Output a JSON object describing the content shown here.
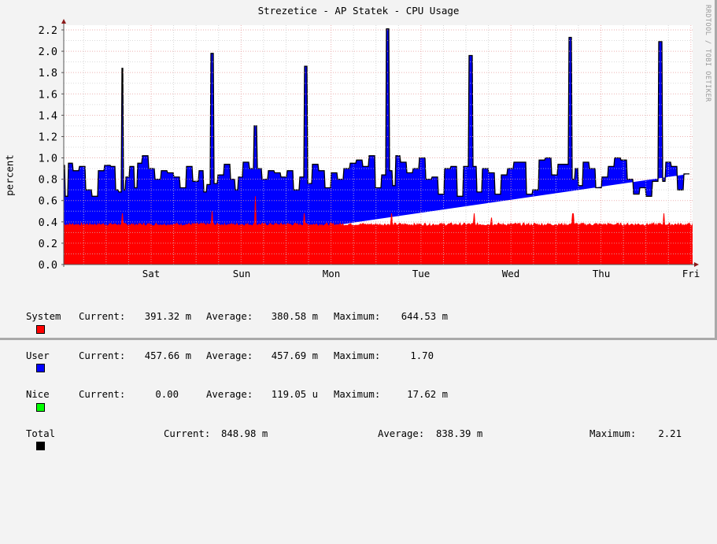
{
  "title": "Strezetice - AP Statek - CPU Usage",
  "watermark": "RRDTOOL / TOBI OETIKER",
  "chart_data": {
    "type": "area",
    "title": "Strezetice - AP Statek - CPU Usage",
    "xlabel": "",
    "ylabel": "percent",
    "ylim": [
      0,
      2.2
    ],
    "yticks": [
      "0.0",
      "0.2",
      "0.4",
      "0.6",
      "0.8",
      "1.0",
      "1.2",
      "1.4",
      "1.6",
      "1.8",
      "2.0",
      "2.2"
    ],
    "xticks": [
      "Sat",
      "Sun",
      "Mon",
      "Tue",
      "Wed",
      "Thu",
      "Fri"
    ],
    "grid": true,
    "stacked": true,
    "series": [
      {
        "name": "System",
        "color": "#ff0000",
        "base_level": 0.38,
        "spikes": [
          [
            0.093,
            0.48
          ],
          [
            0.236,
            0.5
          ],
          [
            0.305,
            0.64
          ],
          [
            0.382,
            0.48
          ],
          [
            0.521,
            0.48
          ],
          [
            0.653,
            0.48
          ],
          [
            0.68,
            0.44
          ],
          [
            0.81,
            0.48
          ],
          [
            0.954,
            0.48
          ]
        ]
      },
      {
        "name": "User",
        "color": "#0000ff",
        "total_profile_x": [
          0.0,
          0.005,
          0.01,
          0.02,
          0.03,
          0.04,
          0.05,
          0.06,
          0.07,
          0.08,
          0.085,
          0.09,
          0.093,
          0.097,
          0.1,
          0.11,
          0.115,
          0.12,
          0.13,
          0.14,
          0.15,
          0.16,
          0.17,
          0.18,
          0.19,
          0.2,
          0.21,
          0.22,
          0.225,
          0.23,
          0.236,
          0.24,
          0.25,
          0.26,
          0.27,
          0.275,
          0.28,
          0.29,
          0.3,
          0.305,
          0.31,
          0.32,
          0.33,
          0.34,
          0.35,
          0.36,
          0.37,
          0.38,
          0.385,
          0.39,
          0.4,
          0.41,
          0.42,
          0.43,
          0.44,
          0.45,
          0.46,
          0.47,
          0.48,
          0.49,
          0.5,
          0.51,
          0.515,
          0.521,
          0.525,
          0.53,
          0.54,
          0.55,
          0.56,
          0.57,
          0.58,
          0.59,
          0.6,
          0.61,
          0.62,
          0.63,
          0.64,
          0.648,
          0.653,
          0.66,
          0.67,
          0.68,
          0.69,
          0.7,
          0.71,
          0.72,
          0.73,
          0.74,
          0.75,
          0.76,
          0.77,
          0.78,
          0.79,
          0.8,
          0.805,
          0.81,
          0.815,
          0.82,
          0.83,
          0.84,
          0.85,
          0.86,
          0.87,
          0.88,
          0.89,
          0.9,
          0.91,
          0.92,
          0.93,
          0.94,
          0.95,
          0.954,
          0.96,
          0.97,
          0.98,
          0.99,
          1.0
        ],
        "total_profile_y": [
          0.93,
          0.64,
          0.95,
          0.88,
          0.92,
          0.7,
          0.64,
          0.88,
          0.93,
          0.92,
          0.7,
          0.68,
          1.84,
          0.7,
          0.82,
          0.92,
          0.72,
          0.95,
          1.02,
          0.9,
          0.8,
          0.88,
          0.86,
          0.82,
          0.72,
          0.92,
          0.78,
          0.88,
          0.68,
          0.75,
          1.98,
          0.76,
          0.84,
          0.94,
          0.8,
          0.7,
          0.82,
          0.96,
          0.9,
          1.3,
          0.9,
          0.8,
          0.88,
          0.86,
          0.82,
          0.88,
          0.7,
          0.82,
          1.86,
          0.76,
          0.94,
          0.88,
          0.72,
          0.86,
          0.8,
          0.9,
          0.95,
          0.98,
          0.92,
          1.02,
          0.72,
          0.84,
          2.21,
          0.88,
          0.74,
          1.02,
          0.96,
          0.86,
          0.9,
          1.0,
          0.8,
          0.82,
          0.66,
          0.9,
          0.92,
          0.64,
          0.92,
          1.96,
          0.92,
          0.68,
          0.9,
          0.86,
          0.66,
          0.84,
          0.9,
          0.96,
          0.96,
          0.66,
          0.7,
          0.98,
          1.0,
          0.84,
          0.94,
          0.94,
          2.13,
          0.8,
          0.9,
          0.74,
          0.96,
          0.9,
          0.72,
          0.82,
          0.92,
          1.0,
          0.98,
          0.8,
          0.66,
          0.72,
          0.64,
          0.78,
          2.09,
          0.78,
          0.96,
          0.92,
          0.7,
          0.85
        ]
      },
      {
        "name": "Nice",
        "color": "#00ff00"
      },
      {
        "name": "Total",
        "color": "#000000"
      }
    ]
  },
  "axis": {
    "ylabel": "percent",
    "yticks": [
      "0.0",
      "0.2",
      "0.4",
      "0.6",
      "0.8",
      "1.0",
      "1.2",
      "1.4",
      "1.6",
      "1.8",
      "2.0",
      "2.2"
    ],
    "xticks": [
      "Sat",
      "Sun",
      "Mon",
      "Tue",
      "Wed",
      "Thu",
      "Fri"
    ]
  },
  "legend": [
    {
      "name": "System",
      "color": "#ff0000",
      "current_label": "Current:",
      "current": "391.32 m",
      "average_label": "Average:",
      "average": "380.58 m",
      "maximum_label": "Maximum:",
      "maximum": "644.53 m"
    },
    {
      "name": "User",
      "color": "#0000ff",
      "current_label": "Current:",
      "current": "457.66 m",
      "average_label": "Average:",
      "average": "457.69 m",
      "maximum_label": "Maximum:",
      "maximum": "1.70"
    },
    {
      "name": "Nice",
      "color": "#00ff00",
      "current_label": "Current:",
      "current": "0.00",
      "average_label": "Average:",
      "average": "119.05 u",
      "maximum_label": "Maximum:",
      "maximum": "17.62 m"
    },
    {
      "name": "Total",
      "color": "#000000",
      "current_label": "Current:",
      "current": "848.98 m",
      "average_label": "Average:",
      "average": "838.39 m",
      "maximum_label": "Maximum:",
      "maximum": "2.21"
    }
  ]
}
